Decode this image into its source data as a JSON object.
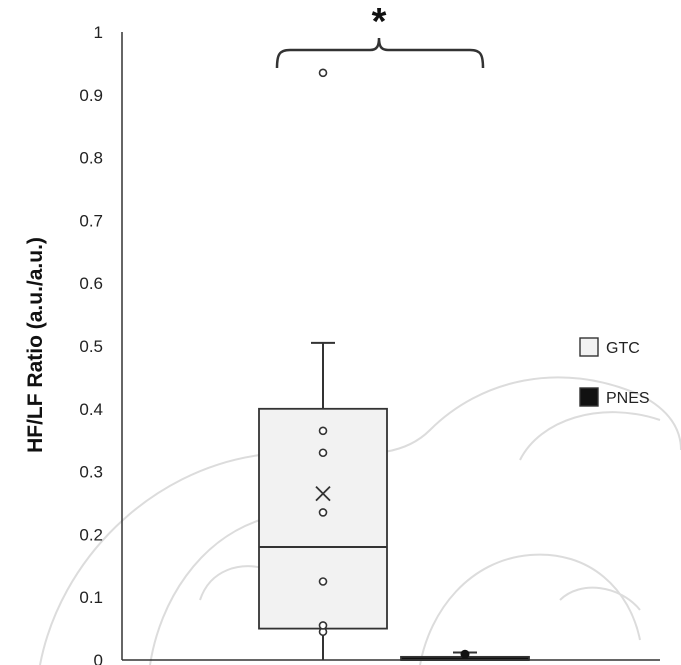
{
  "chart_data": {
    "type": "box",
    "ylabel": "HF/LF Ratio (a.u./a.u.)",
    "ylim": [
      0,
      1
    ],
    "yticks": [
      "0",
      "0.1",
      "0.2",
      "0.3",
      "0.4",
      "0.5",
      "0.6",
      "0.7",
      "0.8",
      "0.9",
      "1"
    ],
    "legend_position": "right",
    "significance_marker": "*",
    "series": [
      {
        "name": "GTC",
        "color": "#f2f2f2",
        "whisker_low": 0.0,
        "q1": 0.05,
        "median": 0.18,
        "q3": 0.4,
        "whisker_high": 0.505,
        "mean": 0.265,
        "points": [
          0.045,
          0.055,
          0.125,
          0.235,
          0.33,
          0.365
        ],
        "outliers": [
          0.935
        ]
      },
      {
        "name": "PNES",
        "color": "#111111",
        "whisker_low": 0.0,
        "q1": 0.0,
        "median": 0.0,
        "q3": 0.005,
        "whisker_high": 0.012,
        "mean": 0.006,
        "points": [],
        "outliers": []
      }
    ]
  }
}
